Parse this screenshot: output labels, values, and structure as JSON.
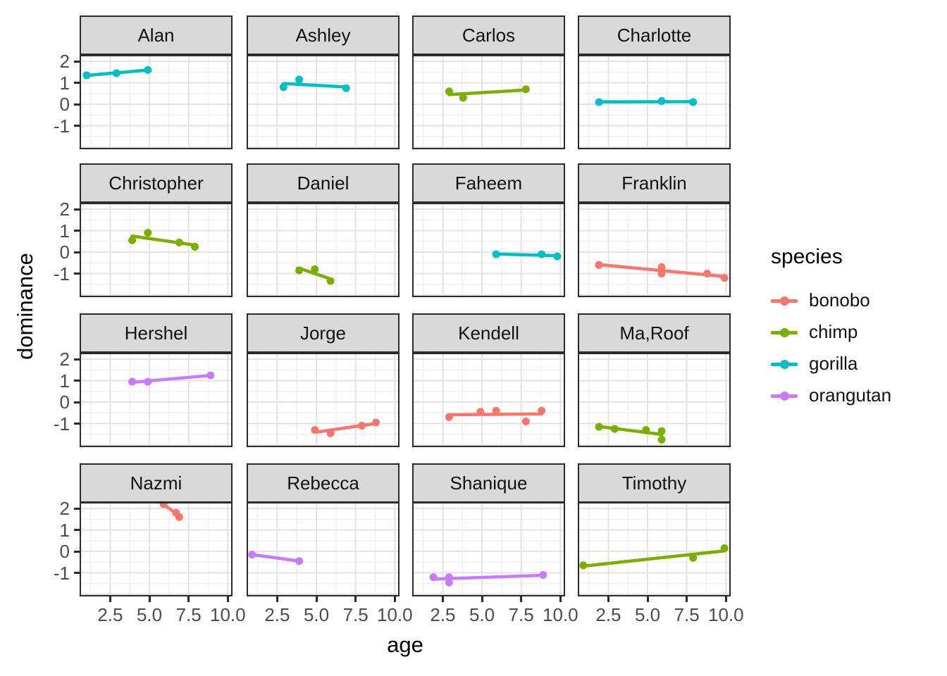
{
  "chart_data": {
    "type": "scatter",
    "description": "Faceted scatter plot with linear trend lines: dominance vs age for 16 individuals, colored by species",
    "xlabel": "age",
    "ylabel": "dominance",
    "x_ticks": [
      "2.5",
      "5.0",
      "7.5",
      "10.0"
    ],
    "x_tick_values": [
      2.5,
      5.0,
      7.5,
      10.0
    ],
    "y_ticks": [
      "2",
      "1",
      "0",
      "-1"
    ],
    "y_tick_values": [
      2,
      1,
      0,
      -1
    ],
    "x_domain": [
      0.55,
      10.3
    ],
    "y_domain": [
      -2.1,
      2.3
    ],
    "x_minor": [
      1.25,
      3.75,
      6.25,
      8.75
    ],
    "y_minor": [
      -1.5,
      -0.5,
      0.5,
      1.5
    ],
    "y_major_extra": [
      -2
    ],
    "grid": "on",
    "legend": {
      "title": "species",
      "position": "right",
      "entries": [
        {
          "label": "bonobo",
          "color": "#F8766D"
        },
        {
          "label": "chimp",
          "color": "#7CAE00"
        },
        {
          "label": "gorilla",
          "color": "#00BFC4"
        },
        {
          "label": "orangutan",
          "color": "#C77CFF"
        }
      ]
    },
    "facets": [
      {
        "name": "Alan",
        "species": "gorilla",
        "points": [
          [
            1.0,
            1.35
          ],
          [
            2.9,
            1.45
          ],
          [
            4.9,
            1.6
          ]
        ]
      },
      {
        "name": "Ashley",
        "species": "gorilla",
        "points": [
          [
            2.9,
            0.8
          ],
          [
            3.9,
            1.15
          ],
          [
            6.9,
            0.75
          ]
        ]
      },
      {
        "name": "Carlos",
        "species": "chimp",
        "points": [
          [
            2.9,
            0.6
          ],
          [
            3.8,
            0.3
          ],
          [
            7.8,
            0.7
          ]
        ]
      },
      {
        "name": "Charlotte",
        "species": "gorilla",
        "points": [
          [
            1.9,
            0.1
          ],
          [
            5.9,
            0.15
          ],
          [
            7.9,
            0.1
          ]
        ]
      },
      {
        "name": "Christopher",
        "species": "chimp",
        "points": [
          [
            3.9,
            0.55
          ],
          [
            4.9,
            0.9
          ],
          [
            6.9,
            0.45
          ],
          [
            7.9,
            0.25
          ]
        ]
      },
      {
        "name": "Daniel",
        "species": "chimp",
        "points": [
          [
            3.9,
            -0.85
          ],
          [
            4.9,
            -0.8
          ],
          [
            5.9,
            -1.35
          ]
        ]
      },
      {
        "name": "Faheem",
        "species": "gorilla",
        "points": [
          [
            5.9,
            -0.1
          ],
          [
            8.8,
            -0.1
          ],
          [
            9.8,
            -0.2
          ]
        ]
      },
      {
        "name": "Franklin",
        "species": "bonobo",
        "points": [
          [
            1.9,
            -0.6
          ],
          [
            5.9,
            -0.7
          ],
          [
            5.9,
            -1.0
          ],
          [
            8.8,
            -1.0
          ],
          [
            9.9,
            -1.2
          ]
        ]
      },
      {
        "name": "Hershel",
        "species": "orangutan",
        "points": [
          [
            3.9,
            0.95
          ],
          [
            4.9,
            0.95
          ],
          [
            8.9,
            1.25
          ]
        ]
      },
      {
        "name": "Jorge",
        "species": "bonobo",
        "points": [
          [
            4.9,
            -1.3
          ],
          [
            5.9,
            -1.45
          ],
          [
            7.9,
            -1.1
          ],
          [
            8.8,
            -0.95
          ]
        ]
      },
      {
        "name": "Kendell",
        "species": "bonobo",
        "points": [
          [
            2.9,
            -0.7
          ],
          [
            4.9,
            -0.45
          ],
          [
            5.9,
            -0.4
          ],
          [
            7.8,
            -0.9
          ],
          [
            8.8,
            -0.4
          ]
        ]
      },
      {
        "name": "Ma,Roof",
        "species": "chimp",
        "points": [
          [
            1.9,
            -1.15
          ],
          [
            2.9,
            -1.25
          ],
          [
            4.9,
            -1.3
          ],
          [
            5.9,
            -1.35
          ],
          [
            5.9,
            -1.75
          ]
        ]
      },
      {
        "name": "Nazmi",
        "species": "bonobo",
        "points": [
          [
            5.9,
            2.2
          ],
          [
            6.7,
            1.8
          ],
          [
            6.9,
            1.6
          ]
        ]
      },
      {
        "name": "Rebecca",
        "species": "orangutan",
        "points": [
          [
            0.9,
            -0.15
          ],
          [
            3.9,
            -0.45
          ]
        ]
      },
      {
        "name": "Shanique",
        "species": "orangutan",
        "points": [
          [
            1.9,
            -1.2
          ],
          [
            2.9,
            -1.2
          ],
          [
            2.9,
            -1.45
          ],
          [
            8.9,
            -1.1
          ]
        ]
      },
      {
        "name": "Timothy",
        "species": "chimp",
        "points": [
          [
            0.9,
            -0.65
          ],
          [
            7.9,
            -0.3
          ],
          [
            9.9,
            0.15
          ]
        ]
      }
    ],
    "style": {
      "strip_fill": "#d9d9d9",
      "panel_border": "#2b2b2b",
      "grid_major": "#e3e3e3",
      "grid_minor": "#f1f1f1",
      "tick_label_color": "#4d4d4d"
    }
  }
}
